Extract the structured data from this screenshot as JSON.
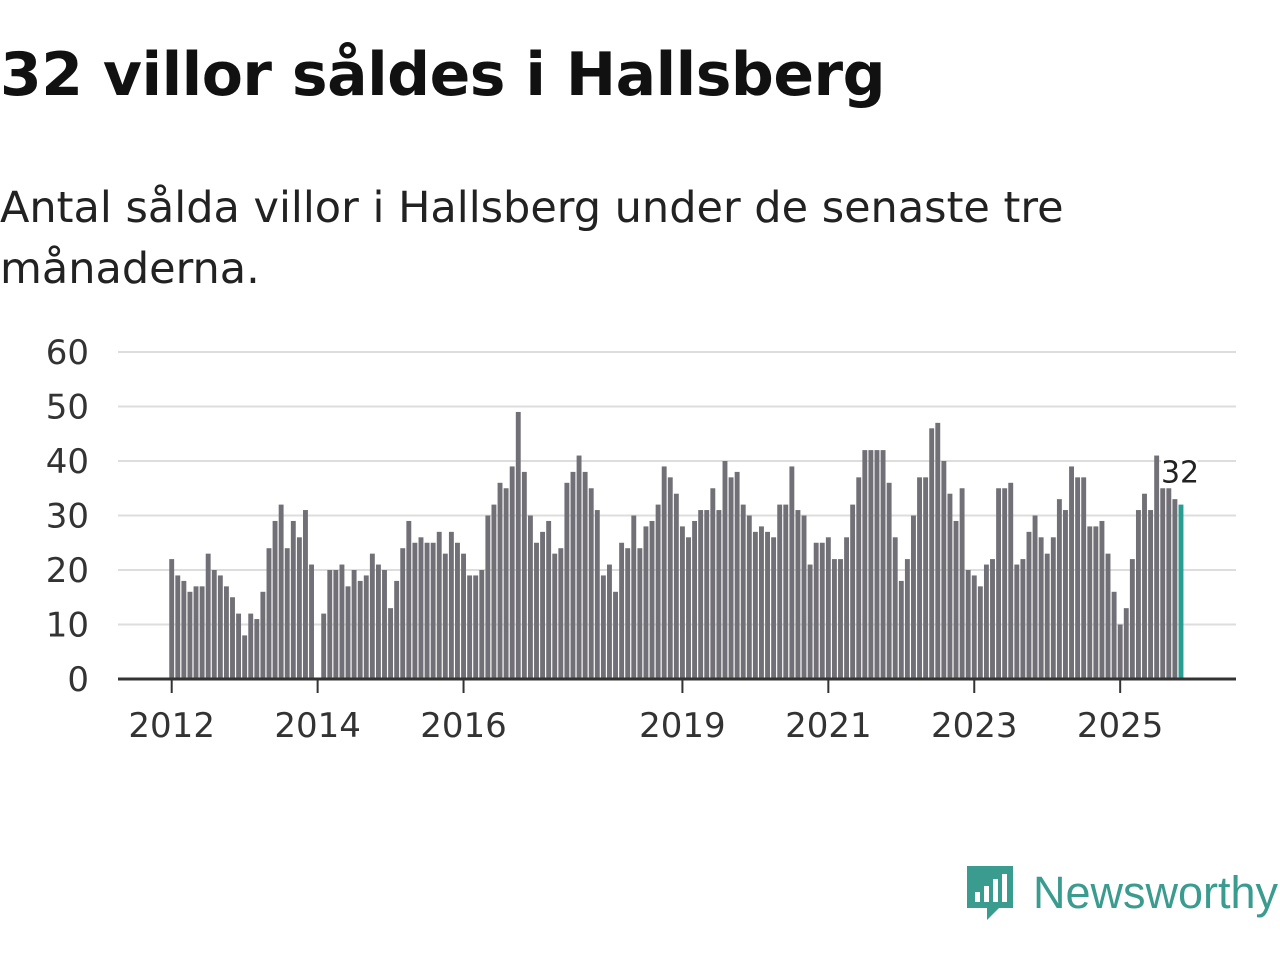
{
  "title": "32 villor såldes i Hallsberg",
  "subtitle": "Antal sålda villor i Hallsberg under de senaste tre månaderna.",
  "brand": {
    "name": "Newsworthy",
    "icon": "newsworthy-logo-icon",
    "color": "#3a9b8f"
  },
  "colors": {
    "bar": "#717076",
    "highlight": "#2a9d93",
    "grid": "#dddddd",
    "axis": "#333333"
  },
  "chart_data": {
    "type": "bar",
    "title": "32 villor såldes i Hallsberg",
    "xlabel": "",
    "ylabel": "",
    "ylim": [
      0,
      60
    ],
    "yticks": [
      0,
      10,
      20,
      30,
      40,
      50,
      60
    ],
    "grid": true,
    "x_tick_labels": [
      {
        "label": "2012",
        "index": 0
      },
      {
        "label": "2014",
        "index": 24
      },
      {
        "label": "2016",
        "index": 48
      },
      {
        "label": "2019",
        "index": 84
      },
      {
        "label": "2021",
        "index": 108
      },
      {
        "label": "2023",
        "index": 132
      },
      {
        "label": "2025",
        "index": 156
      }
    ],
    "first_period": "2012-01",
    "highlight_label": "32",
    "values": [
      22,
      19,
      18,
      16,
      17,
      17,
      23,
      20,
      19,
      17,
      15,
      12,
      8,
      12,
      11,
      16,
      24,
      29,
      32,
      24,
      29,
      26,
      31,
      21,
      0,
      12,
      20,
      20,
      21,
      17,
      20,
      18,
      19,
      23,
      21,
      20,
      13,
      18,
      24,
      29,
      25,
      26,
      25,
      25,
      27,
      23,
      27,
      25,
      23,
      19,
      19,
      20,
      30,
      32,
      36,
      35,
      39,
      49,
      38,
      30,
      25,
      27,
      29,
      23,
      24,
      36,
      38,
      41,
      38,
      35,
      31,
      19,
      21,
      16,
      25,
      24,
      30,
      24,
      28,
      29,
      32,
      39,
      37,
      34,
      28,
      26,
      29,
      31,
      31,
      35,
      31,
      40,
      37,
      38,
      32,
      30,
      27,
      28,
      27,
      26,
      32,
      32,
      39,
      31,
      30,
      21,
      25,
      25,
      26,
      22,
      22,
      26,
      32,
      37,
      42,
      42,
      42,
      42,
      36,
      26,
      18,
      22,
      30,
      37,
      37,
      46,
      47,
      40,
      34,
      29,
      35,
      20,
      19,
      17,
      21,
      22,
      35,
      35,
      36,
      21,
      22,
      27,
      30,
      26,
      23,
      26,
      33,
      31,
      39,
      37,
      37,
      28,
      28,
      29,
      23,
      16,
      10,
      13,
      22,
      31,
      34,
      31,
      41,
      35,
      35,
      33,
      32
    ]
  }
}
